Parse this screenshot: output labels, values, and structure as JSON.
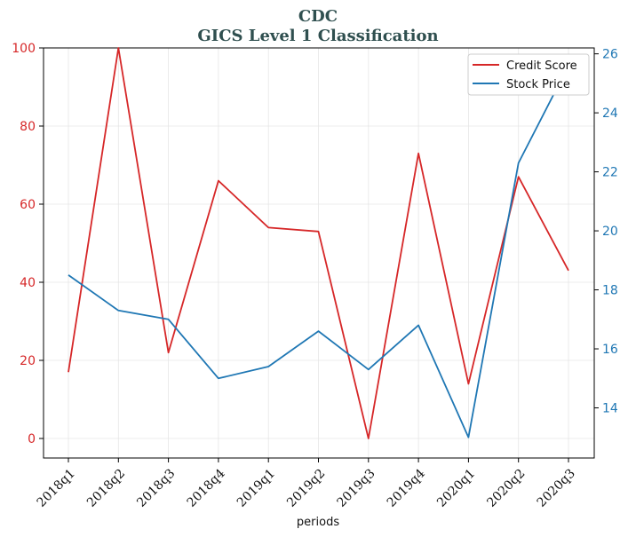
{
  "chart_data": {
    "type": "line",
    "title": "CDC",
    "subtitle": "GICS Level 1 Classification",
    "xlabel": "periods",
    "categories": [
      "2018q1",
      "2018q2",
      "2018q3",
      "2018q4",
      "2019q1",
      "2019q2",
      "2019q3",
      "2019q4",
      "2020q1",
      "2020q2",
      "2020q3"
    ],
    "left_axis": {
      "ylim": [
        -5,
        100
      ],
      "ticks": [
        0,
        20,
        40,
        60,
        80,
        100
      ],
      "color": "#d62728"
    },
    "right_axis": {
      "ylim": [
        12.3,
        26.2
      ],
      "ticks": [
        14,
        16,
        18,
        20,
        22,
        24,
        26
      ],
      "color": "#1f77b4"
    },
    "grid": true,
    "legend_placement": "top-right",
    "series": [
      {
        "name": "Credit Score",
        "axis": "left",
        "color": "#d62728",
        "values": [
          17,
          100,
          22,
          66,
          54,
          53,
          0,
          73,
          14,
          67,
          43
        ]
      },
      {
        "name": "Stock Price",
        "axis": "right",
        "color": "#1f77b4",
        "values": [
          18.5,
          17.3,
          17.0,
          15.0,
          15.4,
          16.6,
          15.3,
          16.8,
          13.0,
          22.3,
          25.6
        ]
      }
    ]
  }
}
